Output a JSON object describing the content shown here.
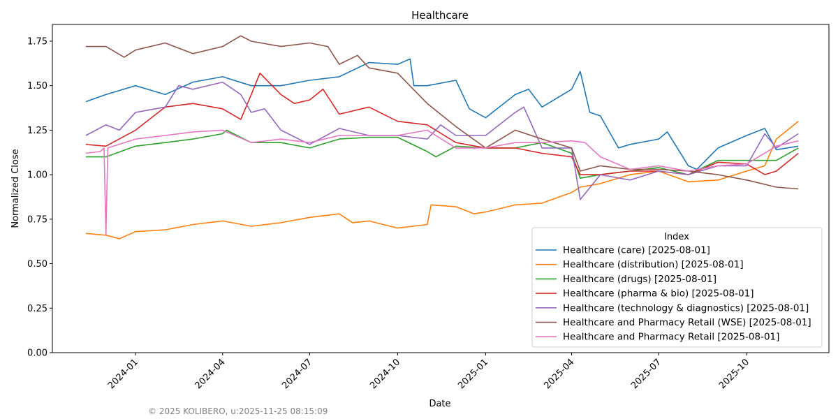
{
  "chart_data": {
    "type": "line",
    "title": "Healthcare",
    "xlabel": "Date",
    "ylabel": "Normalized Close",
    "xlim": [
      "2023-10-06",
      "2025-12-26"
    ],
    "ylim": [
      0,
      1.844
    ],
    "yticks": [
      "0.00",
      "0.25",
      "0.50",
      "0.75",
      "1.00",
      "1.25",
      "1.50",
      "1.75"
    ],
    "xticks": [
      "2024-01",
      "2024-04",
      "2024-07",
      "2024-10",
      "2025-01",
      "2025-04",
      "2025-07",
      "2025-10"
    ],
    "grid": false,
    "legend": {
      "title": "Index",
      "placement": "lower-right"
    },
    "series": [
      {
        "name": "Healthcare (care) [2025-08-01]",
        "color": "#1f77b4",
        "points": [
          [
            "2023-11-10",
            1.41
          ],
          [
            "2023-12-01",
            1.45
          ],
          [
            "2024-01-01",
            1.5
          ],
          [
            "2024-02-01",
            1.45
          ],
          [
            "2024-03-01",
            1.52
          ],
          [
            "2024-04-01",
            1.55
          ],
          [
            "2024-05-01",
            1.5
          ],
          [
            "2024-06-01",
            1.5
          ],
          [
            "2024-07-01",
            1.53
          ],
          [
            "2024-08-01",
            1.55
          ],
          [
            "2024-09-01",
            1.63
          ],
          [
            "2024-10-01",
            1.62
          ],
          [
            "2024-10-14",
            1.65
          ],
          [
            "2024-10-18",
            1.5
          ],
          [
            "2024-11-01",
            1.5
          ],
          [
            "2024-12-01",
            1.53
          ],
          [
            "2024-12-15",
            1.37
          ],
          [
            "2025-01-01",
            1.32
          ],
          [
            "2025-02-01",
            1.45
          ],
          [
            "2025-02-15",
            1.48
          ],
          [
            "2025-03-01",
            1.38
          ],
          [
            "2025-04-01",
            1.48
          ],
          [
            "2025-04-10",
            1.58
          ],
          [
            "2025-04-20",
            1.35
          ],
          [
            "2025-05-01",
            1.33
          ],
          [
            "2025-05-20",
            1.15
          ],
          [
            "2025-06-01",
            1.17
          ],
          [
            "2025-07-01",
            1.2
          ],
          [
            "2025-07-10",
            1.24
          ],
          [
            "2025-08-01",
            1.05
          ],
          [
            "2025-08-10",
            1.03
          ],
          [
            "2025-09-01",
            1.15
          ],
          [
            "2025-10-01",
            1.22
          ],
          [
            "2025-10-20",
            1.26
          ],
          [
            "2025-11-01",
            1.14
          ],
          [
            "2025-11-24",
            1.16
          ]
        ]
      },
      {
        "name": "Healthcare (distribution) [2025-08-01]",
        "color": "#ff7f0e",
        "points": [
          [
            "2023-11-10",
            0.67
          ],
          [
            "2023-12-01",
            0.66
          ],
          [
            "2023-12-15",
            0.64
          ],
          [
            "2024-01-01",
            0.68
          ],
          [
            "2024-02-01",
            0.69
          ],
          [
            "2024-03-01",
            0.72
          ],
          [
            "2024-04-01",
            0.74
          ],
          [
            "2024-05-01",
            0.71
          ],
          [
            "2024-06-01",
            0.73
          ],
          [
            "2024-07-01",
            0.76
          ],
          [
            "2024-08-01",
            0.78
          ],
          [
            "2024-08-15",
            0.73
          ],
          [
            "2024-09-01",
            0.74
          ],
          [
            "2024-10-01",
            0.7
          ],
          [
            "2024-11-01",
            0.72
          ],
          [
            "2024-11-05",
            0.83
          ],
          [
            "2024-12-01",
            0.82
          ],
          [
            "2024-12-20",
            0.78
          ],
          [
            "2025-01-01",
            0.79
          ],
          [
            "2025-02-01",
            0.83
          ],
          [
            "2025-03-01",
            0.84
          ],
          [
            "2025-04-01",
            0.9
          ],
          [
            "2025-04-10",
            0.93
          ],
          [
            "2025-05-01",
            0.95
          ],
          [
            "2025-06-01",
            1.0
          ],
          [
            "2025-07-01",
            1.02
          ],
          [
            "2025-08-01",
            0.96
          ],
          [
            "2025-09-01",
            0.97
          ],
          [
            "2025-10-01",
            1.02
          ],
          [
            "2025-10-20",
            1.05
          ],
          [
            "2025-11-01",
            1.2
          ],
          [
            "2025-11-24",
            1.3
          ]
        ]
      },
      {
        "name": "Healthcare (drugs) [2025-08-01]",
        "color": "#2ca02c",
        "points": [
          [
            "2023-11-10",
            1.1
          ],
          [
            "2023-12-01",
            1.1
          ],
          [
            "2024-01-01",
            1.16
          ],
          [
            "2024-02-01",
            1.18
          ],
          [
            "2024-03-01",
            1.2
          ],
          [
            "2024-04-01",
            1.23
          ],
          [
            "2024-04-05",
            1.25
          ],
          [
            "2024-05-01",
            1.18
          ],
          [
            "2024-06-01",
            1.18
          ],
          [
            "2024-07-01",
            1.15
          ],
          [
            "2024-08-01",
            1.2
          ],
          [
            "2024-09-01",
            1.21
          ],
          [
            "2024-10-01",
            1.21
          ],
          [
            "2024-11-01",
            1.13
          ],
          [
            "2024-11-10",
            1.1
          ],
          [
            "2024-12-01",
            1.16
          ],
          [
            "2025-01-01",
            1.15
          ],
          [
            "2025-02-01",
            1.15
          ],
          [
            "2025-03-01",
            1.18
          ],
          [
            "2025-04-01",
            1.12
          ],
          [
            "2025-04-10",
            0.98
          ],
          [
            "2025-05-01",
            1.0
          ],
          [
            "2025-06-01",
            1.02
          ],
          [
            "2025-07-01",
            1.04
          ],
          [
            "2025-08-01",
            1.0
          ],
          [
            "2025-09-01",
            1.08
          ],
          [
            "2025-10-01",
            1.08
          ],
          [
            "2025-11-01",
            1.08
          ],
          [
            "2025-11-24",
            1.15
          ]
        ]
      },
      {
        "name": "Healthcare (pharma & bio) [2025-08-01]",
        "color": "#d62728",
        "points": [
          [
            "2023-11-10",
            1.17
          ],
          [
            "2023-12-01",
            1.16
          ],
          [
            "2024-01-01",
            1.25
          ],
          [
            "2024-02-01",
            1.38
          ],
          [
            "2024-03-01",
            1.4
          ],
          [
            "2024-04-01",
            1.37
          ],
          [
            "2024-04-20",
            1.31
          ],
          [
            "2024-05-01",
            1.45
          ],
          [
            "2024-05-10",
            1.57
          ],
          [
            "2024-06-01",
            1.45
          ],
          [
            "2024-06-15",
            1.4
          ],
          [
            "2024-07-01",
            1.42
          ],
          [
            "2024-07-15",
            1.48
          ],
          [
            "2024-08-01",
            1.34
          ],
          [
            "2024-09-01",
            1.38
          ],
          [
            "2024-10-01",
            1.3
          ],
          [
            "2024-11-01",
            1.28
          ],
          [
            "2024-12-01",
            1.18
          ],
          [
            "2025-01-01",
            1.15
          ],
          [
            "2025-02-01",
            1.15
          ],
          [
            "2025-03-01",
            1.12
          ],
          [
            "2025-04-01",
            1.1
          ],
          [
            "2025-04-10",
            1.0
          ],
          [
            "2025-05-01",
            1.0
          ],
          [
            "2025-06-01",
            1.02
          ],
          [
            "2025-07-01",
            1.02
          ],
          [
            "2025-08-01",
            1.0
          ],
          [
            "2025-09-01",
            1.07
          ],
          [
            "2025-10-01",
            1.06
          ],
          [
            "2025-10-20",
            1.0
          ],
          [
            "2025-11-01",
            1.02
          ],
          [
            "2025-11-24",
            1.12
          ]
        ]
      },
      {
        "name": "Healthcare (technology & diagnostics) [2025-08-01]",
        "color": "#9467bd",
        "points": [
          [
            "2023-11-10",
            1.22
          ],
          [
            "2023-12-01",
            1.28
          ],
          [
            "2023-12-15",
            1.25
          ],
          [
            "2024-01-01",
            1.35
          ],
          [
            "2024-02-01",
            1.38
          ],
          [
            "2024-02-15",
            1.5
          ],
          [
            "2024-03-01",
            1.48
          ],
          [
            "2024-04-01",
            1.52
          ],
          [
            "2024-04-20",
            1.45
          ],
          [
            "2024-05-01",
            1.35
          ],
          [
            "2024-05-15",
            1.37
          ],
          [
            "2024-06-01",
            1.25
          ],
          [
            "2024-07-01",
            1.17
          ],
          [
            "2024-08-01",
            1.26
          ],
          [
            "2024-09-01",
            1.22
          ],
          [
            "2024-10-01",
            1.22
          ],
          [
            "2024-11-01",
            1.2
          ],
          [
            "2024-11-15",
            1.28
          ],
          [
            "2024-12-01",
            1.22
          ],
          [
            "2025-01-01",
            1.22
          ],
          [
            "2025-02-01",
            1.35
          ],
          [
            "2025-02-10",
            1.38
          ],
          [
            "2025-03-01",
            1.15
          ],
          [
            "2025-04-01",
            1.15
          ],
          [
            "2025-04-10",
            0.86
          ],
          [
            "2025-05-01",
            1.0
          ],
          [
            "2025-06-01",
            0.97
          ],
          [
            "2025-07-01",
            1.02
          ],
          [
            "2025-08-01",
            1.0
          ],
          [
            "2025-09-01",
            1.05
          ],
          [
            "2025-10-01",
            1.05
          ],
          [
            "2025-10-20",
            1.23
          ],
          [
            "2025-11-01",
            1.15
          ],
          [
            "2025-11-24",
            1.23
          ]
        ]
      },
      {
        "name": "Healthcare and Pharmacy Retail (WSE) [2025-08-01]",
        "color": "#8c564b",
        "points": [
          [
            "2023-11-10",
            1.72
          ],
          [
            "2023-12-01",
            1.72
          ],
          [
            "2023-12-20",
            1.66
          ],
          [
            "2024-01-01",
            1.7
          ],
          [
            "2024-02-01",
            1.74
          ],
          [
            "2024-03-01",
            1.68
          ],
          [
            "2024-04-01",
            1.72
          ],
          [
            "2024-04-20",
            1.78
          ],
          [
            "2024-05-01",
            1.75
          ],
          [
            "2024-06-01",
            1.72
          ],
          [
            "2024-07-01",
            1.74
          ],
          [
            "2024-07-20",
            1.72
          ],
          [
            "2024-08-01",
            1.62
          ],
          [
            "2024-08-20",
            1.67
          ],
          [
            "2024-09-01",
            1.6
          ],
          [
            "2024-10-01",
            1.57
          ],
          [
            "2024-11-01",
            1.4
          ],
          [
            "2024-12-01",
            1.27
          ],
          [
            "2025-01-01",
            1.15
          ],
          [
            "2025-02-01",
            1.25
          ],
          [
            "2025-03-01",
            1.2
          ],
          [
            "2025-04-01",
            1.15
          ],
          [
            "2025-04-10",
            1.02
          ],
          [
            "2025-05-01",
            1.05
          ],
          [
            "2025-06-01",
            1.03
          ],
          [
            "2025-07-01",
            1.03
          ],
          [
            "2025-08-01",
            1.02
          ],
          [
            "2025-09-01",
            1.0
          ],
          [
            "2025-10-01",
            0.97
          ],
          [
            "2025-11-01",
            0.93
          ],
          [
            "2025-11-24",
            0.92
          ]
        ]
      },
      {
        "name": "Healthcare and Pharmacy Retail [2025-08-01]",
        "color": "#e377c2",
        "points": [
          [
            "2023-11-10",
            1.12
          ],
          [
            "2023-11-25",
            1.13
          ],
          [
            "2023-11-29",
            1.15
          ],
          [
            "2023-12-01",
            0.66
          ],
          [
            "2023-12-03",
            1.15
          ],
          [
            "2024-01-01",
            1.2
          ],
          [
            "2024-02-01",
            1.22
          ],
          [
            "2024-03-01",
            1.24
          ],
          [
            "2024-04-01",
            1.25
          ],
          [
            "2024-05-01",
            1.18
          ],
          [
            "2024-06-01",
            1.2
          ],
          [
            "2024-07-01",
            1.18
          ],
          [
            "2024-08-01",
            1.22
          ],
          [
            "2024-09-01",
            1.22
          ],
          [
            "2024-10-01",
            1.22
          ],
          [
            "2024-11-01",
            1.25
          ],
          [
            "2024-12-01",
            1.15
          ],
          [
            "2025-01-01",
            1.15
          ],
          [
            "2025-02-01",
            1.18
          ],
          [
            "2025-03-01",
            1.18
          ],
          [
            "2025-04-01",
            1.19
          ],
          [
            "2025-04-15",
            1.18
          ],
          [
            "2025-05-01",
            1.1
          ],
          [
            "2025-06-01",
            1.03
          ],
          [
            "2025-07-01",
            1.05
          ],
          [
            "2025-08-01",
            1.02
          ],
          [
            "2025-09-01",
            1.05
          ],
          [
            "2025-10-01",
            1.06
          ],
          [
            "2025-11-01",
            1.16
          ],
          [
            "2025-11-24",
            1.19
          ]
        ]
      }
    ]
  },
  "footer": "© 2025 KOLIBERO, u:2025-11-25 08:15:09"
}
